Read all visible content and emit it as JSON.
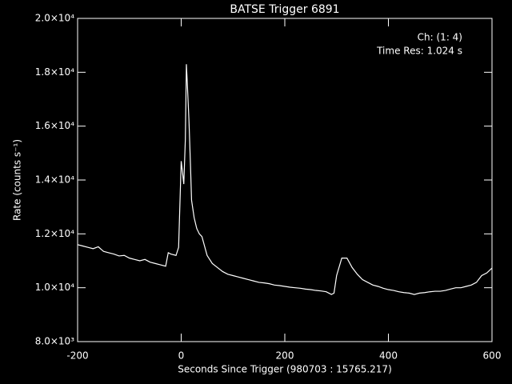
{
  "chart_data": {
    "type": "line",
    "title": "BATSE Trigger 6891",
    "x_label": "Seconds Since Trigger (980703 : 15765.217)",
    "y_label": "Rate (counts s⁻¹)",
    "annotations": [
      "Ch: (1: 4)",
      "Time Res: 1.024 s"
    ],
    "color": "#ffffff",
    "xlim": [
      -200,
      600
    ],
    "xticks": [
      -200,
      0,
      200,
      400,
      600
    ],
    "ylim": [
      8000,
      20000
    ],
    "yticks": [
      {
        "value": 8000,
        "label": "8.0×10³"
      },
      {
        "value": 10000,
        "label": "1.0×10⁴"
      },
      {
        "value": 12000,
        "label": "1.2×10⁴"
      },
      {
        "value": 14000,
        "label": "1.4×10⁴"
      },
      {
        "value": 16000,
        "label": "1.6×10⁴"
      },
      {
        "value": 18000,
        "label": "1.8×10⁴"
      },
      {
        "value": 20000,
        "label": "2.0×10⁴"
      }
    ],
    "x": [
      -200,
      -190,
      -180,
      -170,
      -160,
      -150,
      -140,
      -130,
      -120,
      -110,
      -100,
      -90,
      -80,
      -70,
      -60,
      -50,
      -40,
      -30,
      -25,
      -20,
      -10,
      -5,
      0,
      3,
      5,
      8,
      10,
      12,
      15,
      18,
      20,
      25,
      30,
      35,
      40,
      50,
      60,
      70,
      80,
      90,
      100,
      110,
      120,
      130,
      140,
      150,
      160,
      170,
      180,
      190,
      200,
      210,
      220,
      230,
      240,
      250,
      260,
      270,
      280,
      290,
      295,
      300,
      310,
      320,
      330,
      340,
      350,
      360,
      370,
      380,
      390,
      400,
      410,
      420,
      430,
      440,
      450,
      460,
      470,
      480,
      490,
      500,
      510,
      520,
      530,
      540,
      550,
      560,
      570,
      580,
      590,
      600
    ],
    "values": [
      11600,
      11550,
      11500,
      11450,
      11520,
      11350,
      11300,
      11250,
      11180,
      11200,
      11100,
      11050,
      11000,
      11050,
      10950,
      10900,
      10850,
      10800,
      11300,
      11250,
      11200,
      11500,
      14700,
      14200,
      13850,
      15500,
      18300,
      17500,
      16200,
      14500,
      13250,
      12600,
      12200,
      12000,
      11900,
      11200,
      10900,
      10750,
      10600,
      10500,
      10450,
      10400,
      10350,
      10300,
      10250,
      10200,
      10180,
      10150,
      10100,
      10080,
      10050,
      10020,
      10000,
      9980,
      9950,
      9930,
      9900,
      9880,
      9850,
      9750,
      9800,
      10450,
      11100,
      11100,
      10750,
      10500,
      10300,
      10200,
      10100,
      10050,
      9980,
      9930,
      9900,
      9850,
      9820,
      9800,
      9750,
      9800,
      9820,
      9850,
      9870,
      9870,
      9900,
      9950,
      10000,
      10000,
      10050,
      10100,
      10200,
      10450,
      10550,
      10730
    ]
  }
}
